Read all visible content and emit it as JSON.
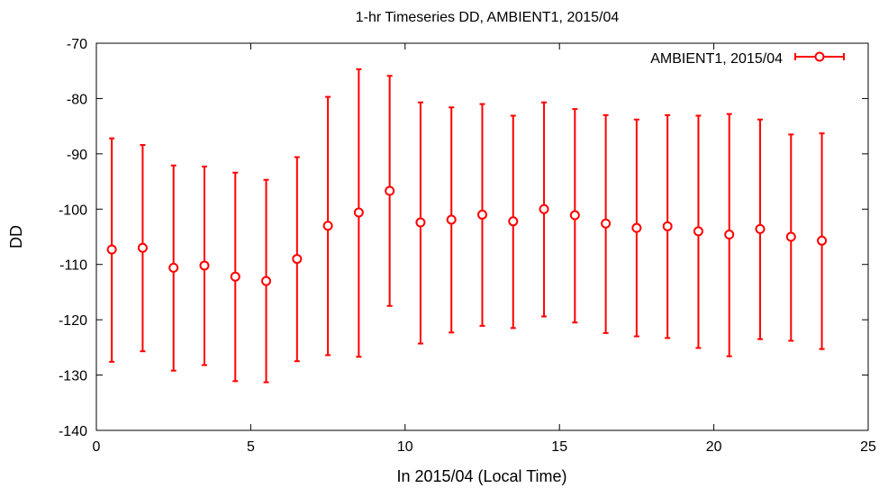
{
  "chart_data": {
    "type": "scatter",
    "title": "1-hr Timeseries DD, AMBIENT1, 2015/04",
    "xlabel": "In 2015/04 (Local Time)",
    "ylabel": "DD",
    "xlim": [
      0,
      25
    ],
    "ylim": [
      -140,
      -70
    ],
    "xticks": [
      0,
      5,
      10,
      15,
      20,
      25
    ],
    "yticks": [
      -140,
      -130,
      -120,
      -110,
      -100,
      -90,
      -80,
      -70
    ],
    "grid": false,
    "legend_position": "top-right",
    "series": [
      {
        "name": "AMBIENT1, 2015/04",
        "color": "#ff0000",
        "marker": "open-circle",
        "error_bars": true,
        "x": [
          0.5,
          1.5,
          2.5,
          3.5,
          4.5,
          5.5,
          6.5,
          7.5,
          8.5,
          9.5,
          10.5,
          11.5,
          12.5,
          13.5,
          14.5,
          15.5,
          16.5,
          17.5,
          18.5,
          19.5,
          20.5,
          21.5,
          22.5,
          23.5
        ],
        "y": [
          -107.3,
          -107.0,
          -110.6,
          -110.2,
          -112.2,
          -113.0,
          -109.0,
          -103.0,
          -100.6,
          -96.7,
          -102.4,
          -101.9,
          -101.0,
          -102.2,
          -100.0,
          -101.1,
          -102.6,
          -103.4,
          -103.1,
          -104.0,
          -104.6,
          -103.6,
          -105.0,
          -105.7
        ],
        "y_err_high": [
          -87.2,
          -88.4,
          -92.1,
          -92.3,
          -93.4,
          -94.7,
          -90.6,
          -79.7,
          -74.7,
          -75.9,
          -80.7,
          -81.6,
          -81.0,
          -83.1,
          -80.7,
          -81.9,
          -83.0,
          -83.8,
          -83.0,
          -83.1,
          -82.8,
          -83.8,
          -86.5,
          -86.3
        ],
        "y_err_low": [
          -127.6,
          -125.7,
          -129.2,
          -128.2,
          -131.1,
          -131.3,
          -127.5,
          -126.4,
          -126.7,
          -117.5,
          -124.3,
          -122.3,
          -121.1,
          -121.5,
          -119.4,
          -120.5,
          -122.4,
          -123.0,
          -123.3,
          -125.1,
          -126.6,
          -123.5,
          -123.8,
          -125.3
        ]
      }
    ]
  }
}
